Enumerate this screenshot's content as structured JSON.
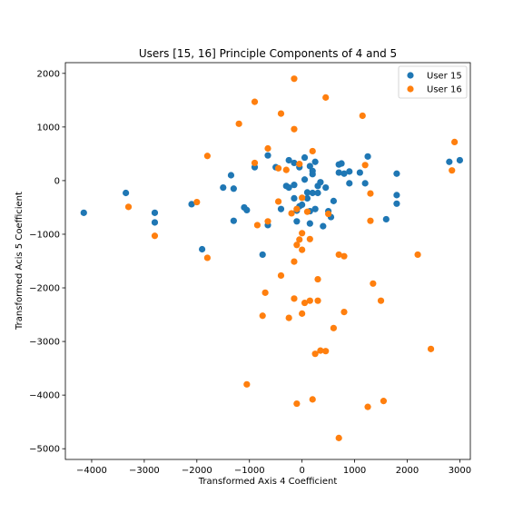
{
  "chart_data": {
    "type": "scatter",
    "title": "Users [15, 16] Principle Components of 4 and 5",
    "xlabel": "Transformed Axis 4 Coefficient",
    "ylabel": "Transformed Acis 5 Coefficient",
    "xlim": [
      -4500,
      3200
    ],
    "ylim": [
      -5200,
      2200
    ],
    "xticks": [
      -4000,
      -3000,
      -2000,
      -1000,
      0,
      1000,
      2000,
      3000
    ],
    "yticks": [
      -5000,
      -4000,
      -3000,
      -2000,
      -1000,
      0,
      1000,
      2000
    ],
    "grid": false,
    "legend_position": "top-right",
    "series": [
      {
        "name": "User 15",
        "color": "#1f77b4",
        "points": [
          [
            -4150,
            -600
          ],
          [
            -3350,
            -230
          ],
          [
            -2800,
            -600
          ],
          [
            -2800,
            -780
          ],
          [
            -2100,
            -440
          ],
          [
            -1900,
            -1280
          ],
          [
            -1500,
            -130
          ],
          [
            -1350,
            100
          ],
          [
            -1300,
            -150
          ],
          [
            -1300,
            -750
          ],
          [
            -1100,
            -500
          ],
          [
            -1050,
            -550
          ],
          [
            -900,
            250
          ],
          [
            -750,
            -1380
          ],
          [
            -650,
            470
          ],
          [
            -650,
            -830
          ],
          [
            -500,
            250
          ],
          [
            -400,
            -530
          ],
          [
            -300,
            -100
          ],
          [
            -250,
            380
          ],
          [
            -250,
            -130
          ],
          [
            -150,
            330
          ],
          [
            -150,
            -80
          ],
          [
            -150,
            -330
          ],
          [
            -100,
            -560
          ],
          [
            -50,
            250
          ],
          [
            -50,
            -480
          ],
          [
            0,
            -450
          ],
          [
            50,
            430
          ],
          [
            50,
            20
          ],
          [
            100,
            -220
          ],
          [
            100,
            -330
          ],
          [
            150,
            270
          ],
          [
            150,
            -570
          ],
          [
            150,
            -800
          ],
          [
            200,
            180
          ],
          [
            200,
            120
          ],
          [
            200,
            -230
          ],
          [
            250,
            350
          ],
          [
            250,
            -530
          ],
          [
            300,
            -100
          ],
          [
            300,
            -230
          ],
          [
            350,
            -30
          ],
          [
            400,
            -850
          ],
          [
            450,
            -130
          ],
          [
            500,
            -570
          ],
          [
            550,
            -680
          ],
          [
            600,
            -380
          ],
          [
            700,
            300
          ],
          [
            700,
            150
          ],
          [
            750,
            320
          ],
          [
            800,
            130
          ],
          [
            900,
            -50
          ],
          [
            900,
            170
          ],
          [
            1100,
            150
          ],
          [
            1200,
            -50
          ],
          [
            1250,
            450
          ],
          [
            1600,
            -720
          ],
          [
            1800,
            -270
          ],
          [
            1800,
            -430
          ],
          [
            1800,
            130
          ],
          [
            2800,
            350
          ],
          [
            3000,
            380
          ],
          [
            -100,
            -760
          ]
        ]
      },
      {
        "name": "User 16",
        "color": "#ff7f0e",
        "points": [
          [
            -3300,
            -490
          ],
          [
            -2800,
            -1030
          ],
          [
            -2000,
            -400
          ],
          [
            -1800,
            460
          ],
          [
            -1800,
            -1440
          ],
          [
            -1200,
            1060
          ],
          [
            -1050,
            -3800
          ],
          [
            -900,
            1470
          ],
          [
            -900,
            330
          ],
          [
            -850,
            -830
          ],
          [
            -750,
            -2520
          ],
          [
            -700,
            -2090
          ],
          [
            -650,
            600
          ],
          [
            -650,
            -760
          ],
          [
            -450,
            230
          ],
          [
            -450,
            -390
          ],
          [
            -400,
            1250
          ],
          [
            -400,
            -1770
          ],
          [
            -300,
            200
          ],
          [
            -250,
            -2560
          ],
          [
            -200,
            -610
          ],
          [
            -150,
            960
          ],
          [
            -150,
            1900
          ],
          [
            -150,
            -1510
          ],
          [
            -150,
            -2200
          ],
          [
            -100,
            -1200
          ],
          [
            -100,
            -4160
          ],
          [
            -50,
            -1100
          ],
          [
            -50,
            310
          ],
          [
            0,
            -320
          ],
          [
            0,
            -980
          ],
          [
            0,
            -1290
          ],
          [
            0,
            -2480
          ],
          [
            50,
            -2280
          ],
          [
            100,
            -580
          ],
          [
            150,
            -1090
          ],
          [
            150,
            -2240
          ],
          [
            200,
            -4080
          ],
          [
            200,
            550
          ],
          [
            250,
            -3230
          ],
          [
            300,
            -1840
          ],
          [
            300,
            -2240
          ],
          [
            350,
            -3170
          ],
          [
            450,
            1550
          ],
          [
            450,
            -3180
          ],
          [
            500,
            -620
          ],
          [
            600,
            -2750
          ],
          [
            700,
            -1380
          ],
          [
            700,
            -4800
          ],
          [
            800,
            -1410
          ],
          [
            800,
            -2450
          ],
          [
            1150,
            1210
          ],
          [
            1200,
            290
          ],
          [
            1250,
            -4220
          ],
          [
            1300,
            -240
          ],
          [
            1300,
            -750
          ],
          [
            1350,
            -1920
          ],
          [
            1500,
            -2240
          ],
          [
            1550,
            -4110
          ],
          [
            2200,
            -1380
          ],
          [
            2450,
            -3140
          ],
          [
            2850,
            190
          ],
          [
            2900,
            720
          ],
          [
            -100,
            -530
          ]
        ]
      }
    ]
  }
}
